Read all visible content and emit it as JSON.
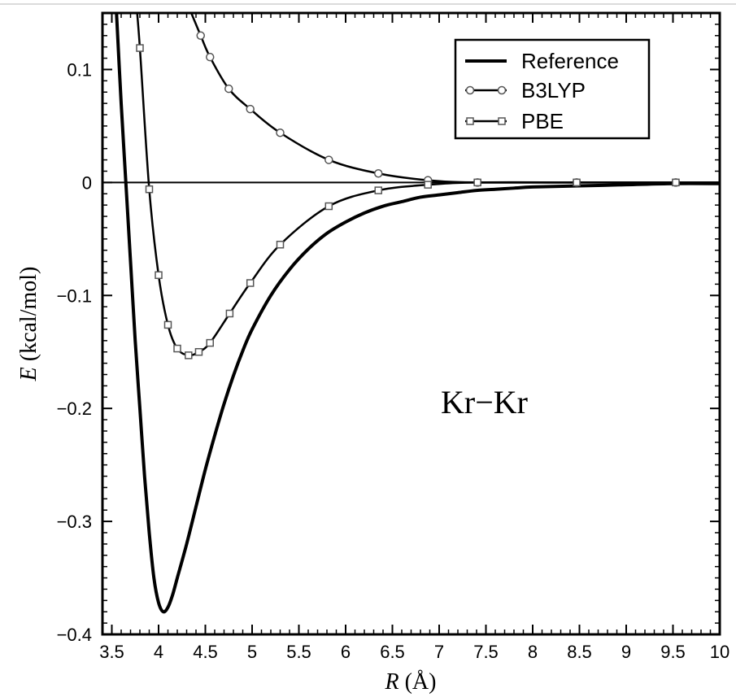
{
  "chart_data": {
    "type": "line",
    "x_axis": {
      "ticks": [
        "3.5",
        "4",
        "4.5",
        "5",
        "5.5",
        "6",
        "6.5",
        "7",
        "7.5",
        "8",
        "8.5",
        "9",
        "9.5",
        "10"
      ],
      "range": [
        3.4,
        10
      ],
      "title_italic": "R",
      "title_rest": " (Å)"
    },
    "y_axis": {
      "ticks": [
        "0.1",
        "0",
        "−0.1",
        "−0.2",
        "−0.3",
        "−0.4"
      ],
      "range": [
        -0.4,
        0.15
      ],
      "title_italic": "E",
      "title_rest": " (kcal/mol)"
    },
    "zero_line": true,
    "legend": {
      "position": "top-right",
      "entries": [
        "Reference",
        "B3LYP",
        "PBE"
      ]
    },
    "annotation": "Kr−Kr",
    "series": [
      {
        "name": "Reference",
        "marker": "none",
        "x": [
          3.55,
          3.6,
          3.65,
          3.7,
          3.75,
          3.8,
          3.85,
          3.9,
          3.95,
          4.0,
          4.05,
          4.1,
          4.15,
          4.2,
          4.3,
          4.4,
          4.5,
          4.6,
          4.7,
          4.8,
          4.9,
          5.0,
          5.2,
          5.4,
          5.6,
          5.8,
          6.0,
          6.2,
          6.4,
          6.6,
          6.8,
          7.0,
          7.2,
          7.4,
          7.6,
          7.8,
          8.0,
          8.5,
          9.0,
          9.5,
          10.0
        ],
        "y": [
          0.15,
          0.07,
          0.0,
          -0.07,
          -0.14,
          -0.2,
          -0.26,
          -0.31,
          -0.35,
          -0.372,
          -0.38,
          -0.376,
          -0.365,
          -0.35,
          -0.32,
          -0.287,
          -0.254,
          -0.224,
          -0.196,
          -0.171,
          -0.149,
          -0.13,
          -0.1,
          -0.077,
          -0.059,
          -0.045,
          -0.035,
          -0.027,
          -0.021,
          -0.017,
          -0.013,
          -0.011,
          -0.009,
          -0.007,
          -0.006,
          -0.005,
          -0.004,
          -0.003,
          -0.002,
          -0.001,
          -0.001
        ]
      },
      {
        "name": "B3LYP",
        "marker": "circle",
        "x": [
          4.45,
          4.55,
          4.75,
          4.98,
          5.3,
          5.82,
          6.35,
          6.88,
          7.41,
          8.47,
          9.53
        ],
        "y": [
          0.13,
          0.111,
          0.083,
          0.065,
          0.044,
          0.02,
          0.008,
          0.002,
          0.0,
          0.0,
          0.0
        ],
        "line_x": [
          4.3,
          4.45,
          4.55,
          4.75,
          4.98,
          5.3,
          5.82,
          6.35,
          6.88,
          7.41,
          8.47,
          9.53,
          10.0
        ],
        "line_y": [
          0.16,
          0.13,
          0.111,
          0.083,
          0.065,
          0.044,
          0.02,
          0.008,
          0.002,
          0.0,
          0.0,
          0.0,
          0.0
        ]
      },
      {
        "name": "PBE",
        "marker": "square",
        "x": [
          3.8,
          3.9,
          4.0,
          4.1,
          4.2,
          4.32,
          4.43,
          4.55,
          4.76,
          4.98,
          5.3,
          5.82,
          6.35,
          6.88,
          7.41,
          8.47,
          9.53
        ],
        "y": [
          0.119,
          -0.006,
          -0.082,
          -0.126,
          -0.147,
          -0.153,
          -0.15,
          -0.142,
          -0.116,
          -0.089,
          -0.055,
          -0.021,
          -0.007,
          -0.002,
          0.0,
          0.0,
          0.0
        ],
        "line_x": [
          3.76,
          3.8,
          3.9,
          4.0,
          4.1,
          4.2,
          4.32,
          4.43,
          4.55,
          4.76,
          4.98,
          5.3,
          5.82,
          6.35,
          6.88,
          7.41,
          8.47,
          9.53,
          10.0
        ],
        "line_y": [
          0.16,
          0.119,
          -0.006,
          -0.082,
          -0.126,
          -0.147,
          -0.153,
          -0.15,
          -0.142,
          -0.116,
          -0.089,
          -0.055,
          -0.021,
          -0.007,
          -0.002,
          0.0,
          0.0,
          0.0,
          0.0
        ]
      }
    ]
  }
}
